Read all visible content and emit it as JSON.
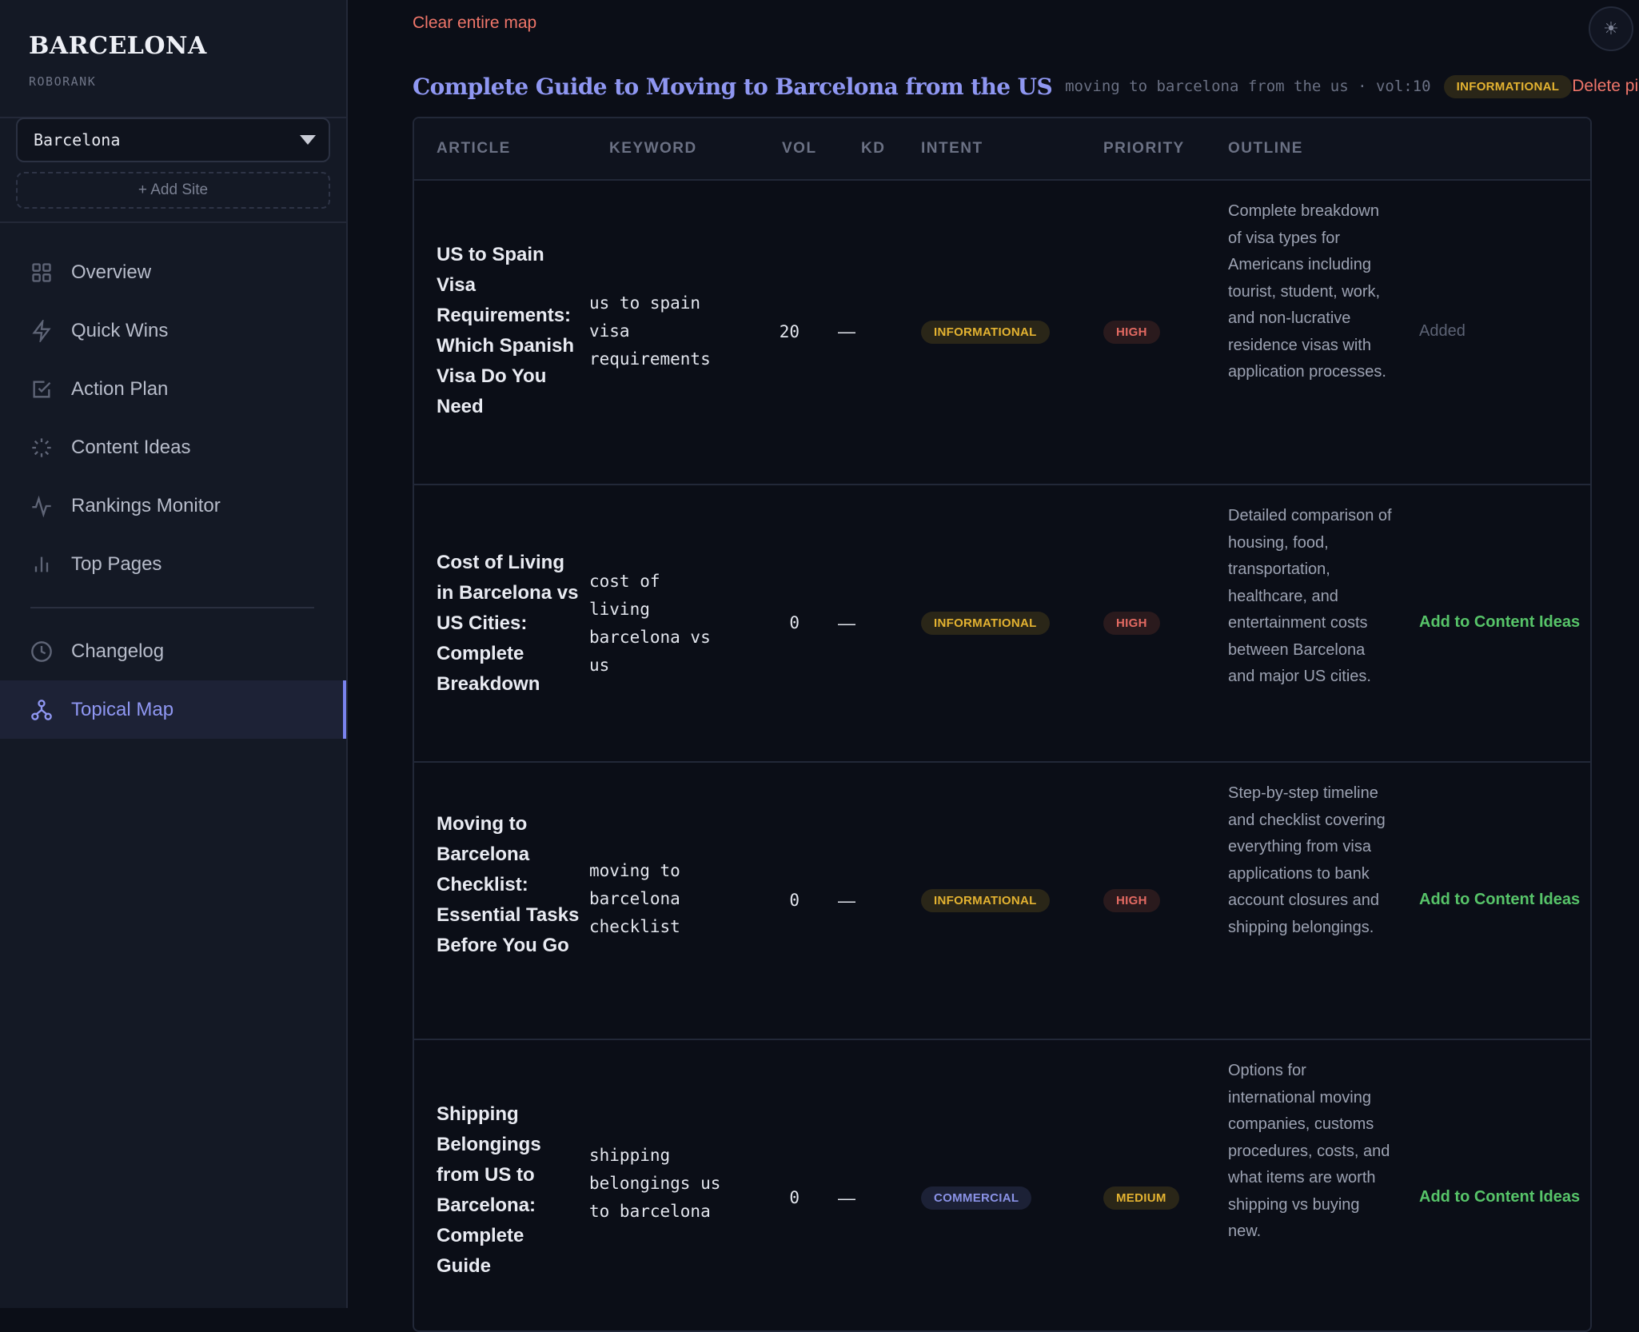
{
  "sidebar": {
    "brand_title": "BARCELONA",
    "brand_subtitle": "ROBORANK",
    "site_select_value": "Barcelona",
    "add_site_label": "+ Add Site",
    "nav_items": [
      {
        "label": "Overview",
        "icon": "grid-icon"
      },
      {
        "label": "Quick Wins",
        "icon": "lightning-icon"
      },
      {
        "label": "Action Plan",
        "icon": "checkbox-icon"
      },
      {
        "label": "Content Ideas",
        "icon": "sparkle-icon"
      },
      {
        "label": "Rankings Monitor",
        "icon": "pulse-icon"
      },
      {
        "label": "Top Pages",
        "icon": "bar-chart-icon"
      }
    ],
    "nav_items_bottom": [
      {
        "label": "Changelog",
        "icon": "clock-icon"
      },
      {
        "label": "Topical Map",
        "icon": "network-icon",
        "active": true
      }
    ]
  },
  "main": {
    "clear_map_label": "Clear entire map",
    "theme_toggle_icon": "sun-icon",
    "pillar": {
      "title": "Complete Guide to Moving to Barcelona from the US",
      "meta": "moving to barcelona from the us · vol:10",
      "intent": "INFORMATIONAL",
      "delete_label": "Delete pillar"
    },
    "table": {
      "headers": {
        "article": "ARTICLE",
        "keyword": "KEYWORD",
        "vol": "VOL",
        "kd": "KD",
        "intent": "INTENT",
        "priority": "PRIORITY",
        "outline": "OUTLINE"
      },
      "rows": [
        {
          "article": "US to Spain Visa Requirements: Which Spanish Visa Do You Need",
          "keyword": "us to spain visa requirements",
          "vol": "20",
          "kd": "—",
          "intent": "INFORMATIONAL",
          "priority": "HIGH",
          "outline": "Complete breakdown of visa types for Americans including tourist, student, work, and non-lucrative residence visas with application processes.",
          "action": "Added"
        },
        {
          "article": "Cost of Living in Barcelona vs US Cities: Complete Breakdown",
          "keyword": "cost of living barcelona vs us",
          "vol": "0",
          "kd": "—",
          "intent": "INFORMATIONAL",
          "priority": "HIGH",
          "outline": "Detailed comparison of housing, food, transportation, healthcare, and entertainment costs between Barcelona and major US cities.",
          "action": "Add to Content Ideas"
        },
        {
          "article": "Moving to Barcelona Checklist: Essential Tasks Before You Go",
          "keyword": "moving to barcelona checklist",
          "vol": "0",
          "kd": "—",
          "intent": "INFORMATIONAL",
          "priority": "HIGH",
          "outline": "Step-by-step timeline and checklist covering everything from visa applications to bank account closures and shipping belongings.",
          "action": "Add to Content Ideas"
        },
        {
          "article": "Shipping Belongings from US to Barcelona: Complete Guide",
          "keyword": "shipping belongings us to barcelona",
          "vol": "0",
          "kd": "—",
          "intent": "COMMERCIAL",
          "priority": "MEDIUM",
          "outline": "Options for international moving companies, customs procedures, costs, and what items are worth shipping vs buying new.",
          "action": "Add to Content Ideas"
        }
      ]
    }
  }
}
